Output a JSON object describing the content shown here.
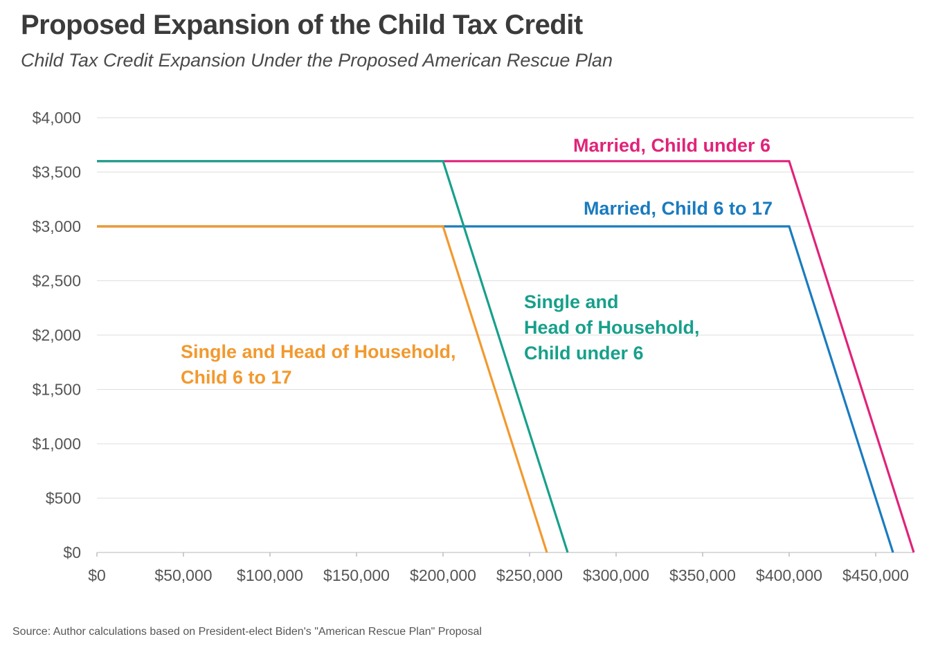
{
  "title": "Proposed Expansion of the Child Tax Credit",
  "subtitle": "Child Tax Credit Expansion Under the Proposed American Rescue Plan",
  "source": "Source: Author calculations based on President-elect Biden's \"American Rescue Plan\" Proposal",
  "chart_data": {
    "type": "line",
    "title": "Proposed Expansion of the Child Tax Credit",
    "subtitle": "Child Tax Credit Expansion Under the Proposed American Rescue Plan",
    "xlabel": "",
    "ylabel": "",
    "xlim": [
      0,
      472000
    ],
    "ylim": [
      0,
      4000
    ],
    "grid": true,
    "x_tick_values": [
      0,
      50000,
      100000,
      150000,
      200000,
      250000,
      300000,
      350000,
      400000,
      450000
    ],
    "x_tick_labels": [
      "$0",
      "$50,000",
      "$100,000",
      "$150,000",
      "$200,000",
      "$250,000",
      "$300,000",
      "$350,000",
      "$400,000",
      "$450,000"
    ],
    "y_tick_values": [
      0,
      500,
      1000,
      1500,
      2000,
      2500,
      3000,
      3500,
      4000
    ],
    "y_tick_labels": [
      "$0",
      "$500",
      "$1,000",
      "$1,500",
      "$2,000",
      "$2,500",
      "$3,000",
      "$3,500",
      "$4,000"
    ],
    "series": [
      {
        "id": "married-under6",
        "name": "Married,  Child under 6",
        "label_lines": [
          "Married,  Child under 6"
        ],
        "color": "#e0237a",
        "x": [
          0,
          400000,
          472000
        ],
        "y": [
          3600,
          3600,
          0
        ]
      },
      {
        "id": "married-6to17",
        "name": "Married, Child 6 to 17",
        "label_lines": [
          "Married, Child 6 to 17"
        ],
        "color": "#1a7bbf",
        "x": [
          0,
          400000,
          460000
        ],
        "y": [
          3000,
          3000,
          0
        ]
      },
      {
        "id": "single-under6",
        "name": "Single and Head of Household, Child under 6",
        "label_lines": [
          "Single and",
          "Head of Household,",
          "Child under 6"
        ],
        "color": "#17a08b",
        "x": [
          0,
          200000,
          272000
        ],
        "y": [
          3600,
          3600,
          0
        ]
      },
      {
        "id": "single-6to17",
        "name": "Single and Head of Household, Child 6 to 17",
        "label_lines": [
          "Single and Head of Household,",
          "Child 6 to 17"
        ],
        "color": "#f2992e",
        "x": [
          0,
          200000,
          260000
        ],
        "y": [
          3000,
          3000,
          0
        ]
      }
    ]
  }
}
